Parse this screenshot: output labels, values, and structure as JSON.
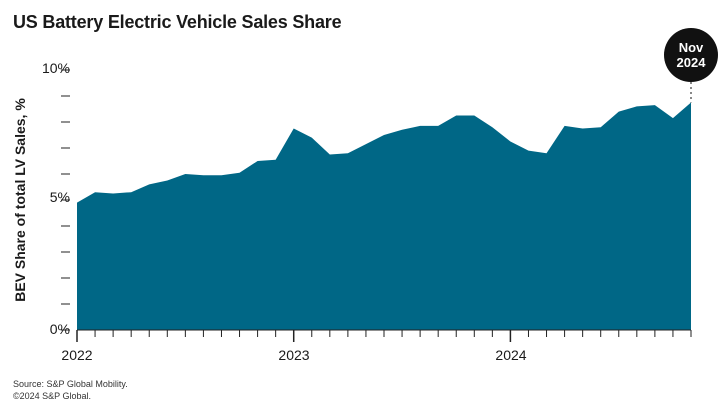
{
  "chart_data": {
    "type": "area",
    "title": "US Battery Electric Vehicle Sales Share",
    "ylabel": "BEV Share of total LV Sales, %",
    "xlabel": "",
    "ylim": [
      0,
      10
    ],
    "y_ticks": [
      {
        "value": 0,
        "label": "0%"
      },
      {
        "value": 5,
        "label": "5%"
      },
      {
        "value": 10,
        "label": "10%"
      }
    ],
    "x_ticks": [
      {
        "index": 0,
        "label": "2022"
      },
      {
        "index": 12,
        "label": "2023"
      },
      {
        "index": 24,
        "label": "2024"
      }
    ],
    "months": [
      "Jan 2022",
      "Feb 2022",
      "Mar 2022",
      "Apr 2022",
      "May 2022",
      "Jun 2022",
      "Jul 2022",
      "Aug 2022",
      "Sep 2022",
      "Oct 2022",
      "Nov 2022",
      "Dec 2022",
      "Jan 2023",
      "Feb 2023",
      "Mar 2023",
      "Apr 2023",
      "May 2023",
      "Jun 2023",
      "Jul 2023",
      "Aug 2023",
      "Sep 2023",
      "Oct 2023",
      "Nov 2023",
      "Dec 2023",
      "Jan 2024",
      "Feb 2024",
      "Mar 2024",
      "Apr 2024",
      "May 2024",
      "Jun 2024",
      "Jul 2024",
      "Aug 2024",
      "Sep 2024",
      "Oct 2024",
      "Nov 2024"
    ],
    "values": [
      4.9,
      5.3,
      5.25,
      5.3,
      5.6,
      5.75,
      6.0,
      5.95,
      5.95,
      6.05,
      6.5,
      6.55,
      7.75,
      7.4,
      6.75,
      6.8,
      7.15,
      7.5,
      7.7,
      7.85,
      7.85,
      8.25,
      8.25,
      7.8,
      7.25,
      6.9,
      6.8,
      7.85,
      7.75,
      7.8,
      8.4,
      8.6,
      8.65,
      8.15,
      8.75
    ],
    "series_color": "#006786",
    "highlight": {
      "index": 34,
      "label_month": "Nov",
      "label_year": "2024"
    }
  },
  "footer": {
    "source": "Source: S&P Global Mobility.",
    "copyright": "©2024 S&P Global."
  }
}
